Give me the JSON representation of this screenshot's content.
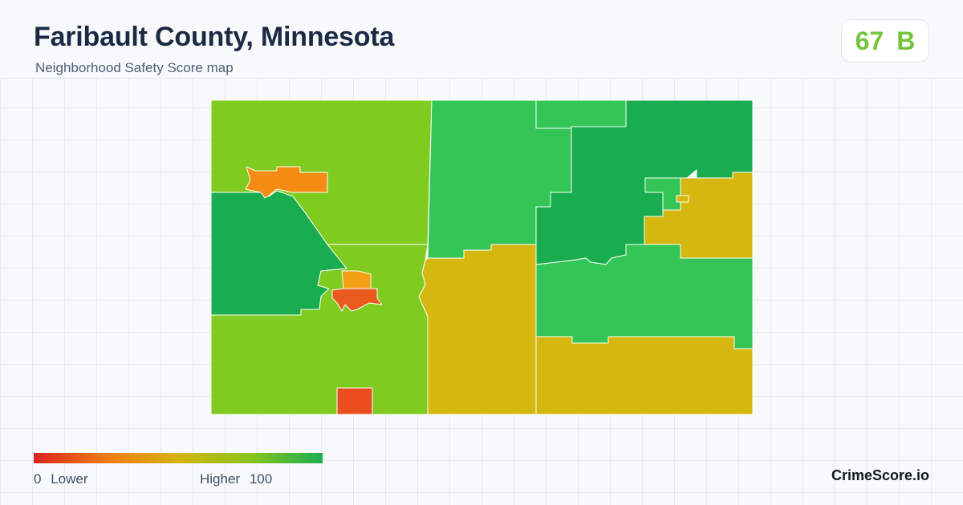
{
  "header": {
    "title": "Faribault County, Minnesota",
    "subtitle": "Neighborhood Safety Score map"
  },
  "score": {
    "value": "67",
    "grade": "B",
    "color": "#76c43d"
  },
  "map": {
    "regions": [
      {
        "name": "northwest-township",
        "fill": "#80cb1f"
      },
      {
        "name": "west-township",
        "fill": "#19ad50"
      },
      {
        "name": "southwest-township",
        "fill": "#80cb1f"
      },
      {
        "name": "north-central-township",
        "fill": "#33c555"
      },
      {
        "name": "central-south-township",
        "fill": "#d4b80f"
      },
      {
        "name": "north-annex",
        "fill": "#33c555"
      },
      {
        "name": "northeast-township",
        "fill": "#19ad50"
      },
      {
        "name": "east-township",
        "fill": "#d4b80f"
      },
      {
        "name": "east-central-township",
        "fill": "#33c555"
      },
      {
        "name": "southeast-township",
        "fill": "#d4b80f"
      },
      {
        "name": "northeast-town",
        "fill": "#33c555"
      },
      {
        "name": "northeast-town-parcel",
        "fill": "#d4b80f"
      },
      {
        "name": "northwest-town",
        "fill": "#f48c14"
      },
      {
        "name": "central-town-north",
        "fill": "#f4a014"
      },
      {
        "name": "central-town-south",
        "fill": "#ea5a1e"
      },
      {
        "name": "south-town",
        "fill": "#ea4d1e"
      }
    ]
  },
  "legend": {
    "low_value": "0",
    "low_label": "Lower",
    "high_label": "Higher",
    "high_value": "100",
    "colors": [
      "#d7261e",
      "#f07b14",
      "#d6b40f",
      "#8ac41c",
      "#19ad50"
    ]
  },
  "brand": "CrimeScore.io"
}
